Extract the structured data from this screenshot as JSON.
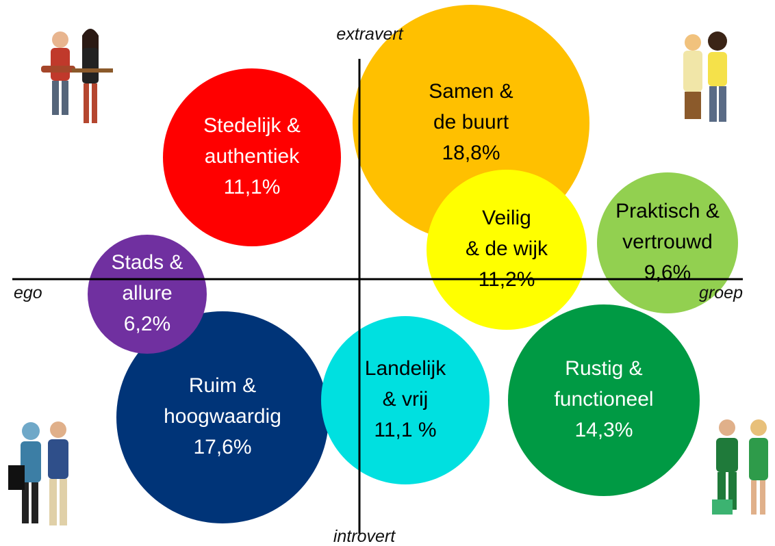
{
  "axes": {
    "top": "extravert",
    "bottom": "introvert",
    "left": "ego",
    "right": "groep"
  },
  "segments": [
    {
      "lines": [
        "Samen &",
        "de buurt"
      ],
      "share": "18,8%",
      "color": "#ffc000",
      "text_color": "#000000"
    },
    {
      "lines": [
        "Stedelijk &",
        "authentiek"
      ],
      "share": "11,1%",
      "color": "#ff0000",
      "text_color": "#ffffff"
    },
    {
      "lines": [
        "Veilig",
        "& de wijk"
      ],
      "share": "11,2%",
      "color": "#ffff00",
      "text_color": "#000000"
    },
    {
      "lines": [
        "Praktisch &",
        "vertrouwd"
      ],
      "share": "9,6%",
      "color": "#92d050",
      "text_color": "#000000"
    },
    {
      "lines": [
        "Ruim &",
        "hoogwaardig"
      ],
      "share": "17,6%",
      "color": "#003478",
      "text_color": "#ffffff"
    },
    {
      "lines": [
        "Stads &",
        "allure"
      ],
      "share": "6,2%",
      "color": "#7030a0",
      "text_color": "#ffffff"
    },
    {
      "lines": [
        "Landelijk",
        "& vrij"
      ],
      "share": "11,1 %",
      "color": "#00e0e0",
      "text_color": "#000000"
    },
    {
      "lines": [
        "Rustig &",
        "functioneel"
      ],
      "share": "14,3%",
      "color": "#009a44",
      "text_color": "#ffffff"
    }
  ]
}
